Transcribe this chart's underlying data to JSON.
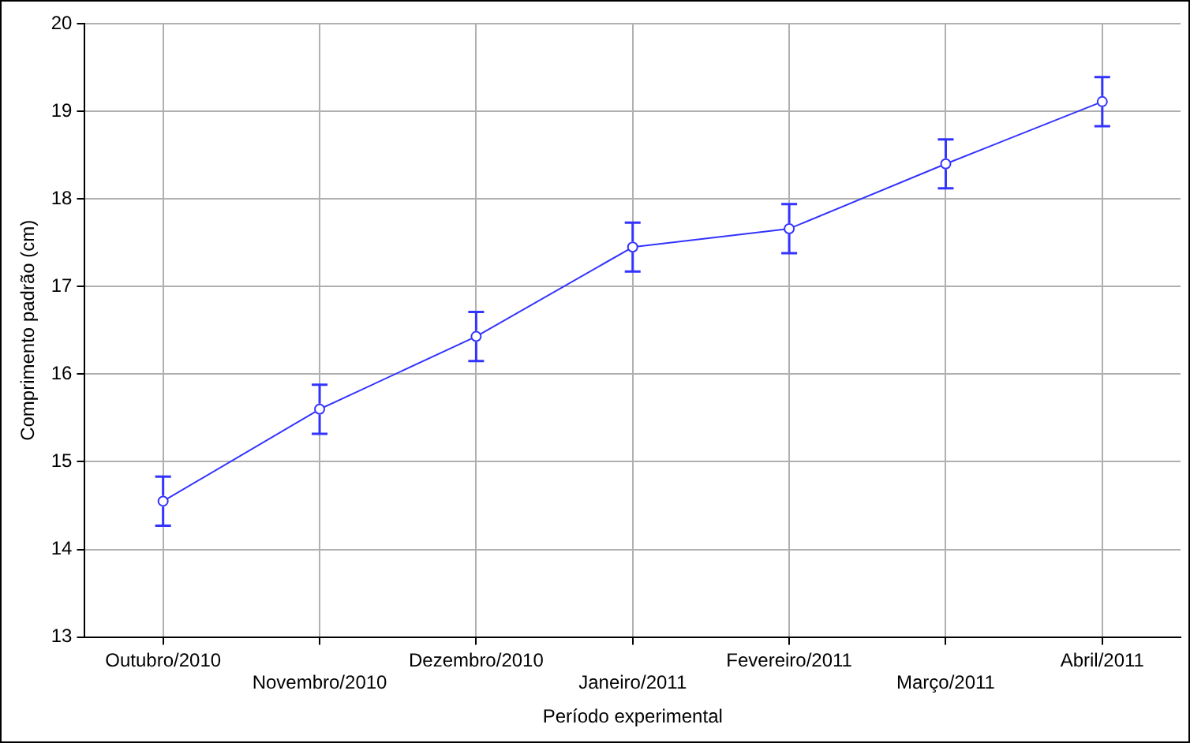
{
  "chart_data": {
    "type": "line",
    "xlabel": "Período experimental",
    "ylabel": "Comprimento padrão (cm)",
    "categories": [
      "Outubro/2010",
      "Novembro/2010",
      "Dezembro/2010",
      "Janeiro/2011",
      "Fevereiro/2011",
      "Março/2011",
      "Abril/2011"
    ],
    "series": [
      {
        "color": "#3333ff",
        "values": [
          14.55,
          15.6,
          16.43,
          17.45,
          17.66,
          18.4,
          19.11
        ],
        "errors": [
          0.28,
          0.28,
          0.28,
          0.28,
          0.28,
          0.28,
          0.28
        ]
      }
    ],
    "ylim": [
      13,
      20
    ],
    "yticks": [
      13,
      14,
      15,
      16,
      17,
      18,
      19,
      20
    ],
    "grid": true,
    "legend": false,
    "marker": "circle",
    "line_style": "solid"
  }
}
